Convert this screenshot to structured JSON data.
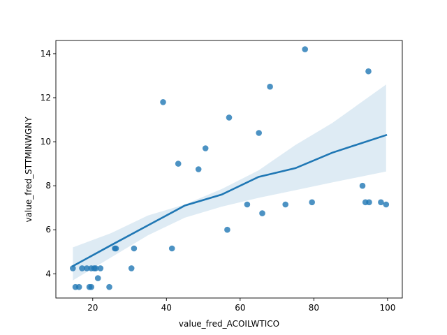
{
  "chart_data": {
    "type": "scatter",
    "xlabel": "value_fred_ACOILWTICO",
    "ylabel": "value_fred_STTMINWGNY",
    "xlim": [
      10.0,
      104.0
    ],
    "ylim": [
      2.9,
      14.6
    ],
    "x_ticks": [
      "20",
      "40",
      "60",
      "80",
      "100"
    ],
    "y_ticks": [
      "4",
      "6",
      "8",
      "10",
      "12",
      "14"
    ],
    "grid": false,
    "colors": {
      "points": "#1f77b4",
      "line": "#1f77b4",
      "band": "#1f77b4"
    },
    "points": [
      [
        14.6,
        4.25
      ],
      [
        15.3,
        3.4
      ],
      [
        16.3,
        3.4
      ],
      [
        17.1,
        4.25
      ],
      [
        18.4,
        4.25
      ],
      [
        19.1,
        3.4
      ],
      [
        19.6,
        3.4
      ],
      [
        19.6,
        4.25
      ],
      [
        20.4,
        4.25
      ],
      [
        20.8,
        4.25
      ],
      [
        21.4,
        3.8
      ],
      [
        22.1,
        4.25
      ],
      [
        24.5,
        3.4
      ],
      [
        26.0,
        5.15
      ],
      [
        26.3,
        5.15
      ],
      [
        30.5,
        4.25
      ],
      [
        31.2,
        5.15
      ],
      [
        39.1,
        11.8
      ],
      [
        41.5,
        5.15
      ],
      [
        43.2,
        9.0
      ],
      [
        48.7,
        8.75
      ],
      [
        50.6,
        9.7
      ],
      [
        56.5,
        6.0
      ],
      [
        57.0,
        11.1
      ],
      [
        61.9,
        7.15
      ],
      [
        65.1,
        10.4
      ],
      [
        66.0,
        6.75
      ],
      [
        68.1,
        12.5
      ],
      [
        72.3,
        7.15
      ],
      [
        77.6,
        14.2
      ],
      [
        79.5,
        7.25
      ],
      [
        93.2,
        8.0
      ],
      [
        94.0,
        7.25
      ],
      [
        94.8,
        13.2
      ],
      [
        95.0,
        7.25
      ],
      [
        98.2,
        7.25
      ],
      [
        99.6,
        7.15
      ]
    ],
    "regression": {
      "x": [
        14.6,
        25,
        35,
        45,
        55,
        65,
        75,
        85,
        99.6
      ],
      "y": [
        4.35,
        5.3,
        6.2,
        7.1,
        7.6,
        8.4,
        8.8,
        9.5,
        10.3
      ],
      "ci_lower": [
        3.7,
        4.75,
        5.75,
        6.55,
        7.05,
        7.45,
        7.8,
        8.15,
        8.65
      ],
      "ci_upper": [
        5.2,
        5.85,
        6.65,
        7.15,
        7.85,
        8.7,
        9.85,
        10.85,
        12.6
      ]
    }
  }
}
